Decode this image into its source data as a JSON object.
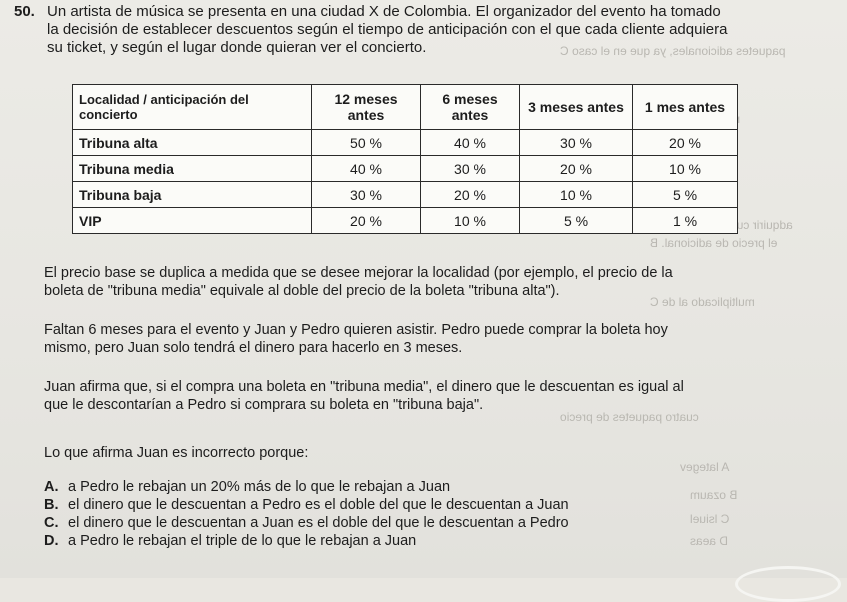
{
  "question": {
    "number": "50.",
    "stem_lines": [
      "Un artista de música se presenta en una ciudad X de Colombia. El organizador del evento ha tomado",
      "la decisión de establecer descuentos según el tiempo de anticipación con el que cada cliente adquiera",
      "su ticket, y según el lugar donde quieran ver el concierto."
    ]
  },
  "table": {
    "headers": [
      "Localidad / anticipación del concierto",
      "12 meses antes",
      "6 meses antes",
      "3 meses antes",
      "1 mes antes"
    ],
    "rows": [
      {
        "label": "Tribuna alta",
        "values": [
          "50 %",
          "40 %",
          "30 %",
          "20 %"
        ]
      },
      {
        "label": "Tribuna media",
        "values": [
          "40 %",
          "30 %",
          "20 %",
          "10 %"
        ]
      },
      {
        "label": "Tribuna baja",
        "values": [
          "30 %",
          "20 %",
          "10 %",
          "5 %"
        ]
      },
      {
        "label": "VIP",
        "values": [
          "20 %",
          "10 %",
          "5 %",
          "1 %"
        ]
      }
    ]
  },
  "paragraphs": [
    [
      "El precio base se duplica a medida que se desee mejorar la localidad (por ejemplo, el precio de la",
      "boleta de \"tribuna media\" equivale al doble del precio de la boleta \"tribuna alta\")."
    ],
    [
      "Faltan 6 meses para el evento y Juan y Pedro quieren asistir. Pedro puede comprar la boleta hoy",
      "mismo, pero Juan solo tendrá el dinero para hacerlo en 3 meses."
    ],
    [
      "Juan afirma que, si el compra una boleta en \"tribuna media\", el dinero que le descuentan es igual al",
      "que le descontarían a Pedro si comprara su boleta en \"tribuna baja\"."
    ],
    [
      "Lo que afirma Juan es incorrecto porque:"
    ]
  ],
  "options": [
    {
      "letter": "A.",
      "text": "a Pedro le rebajan un 20% más de lo que le rebajan a Juan"
    },
    {
      "letter": "B.",
      "text": "el dinero que le descuentan a Pedro es el doble del que le descuentan a Juan"
    },
    {
      "letter": "C.",
      "text": "el dinero que le descuentan a Juan es el doble del que le descuentan a Pedro"
    },
    {
      "letter": "D.",
      "text": "a Pedro le rebajan el triple de lo que le rebajan a Juan"
    }
  ]
}
